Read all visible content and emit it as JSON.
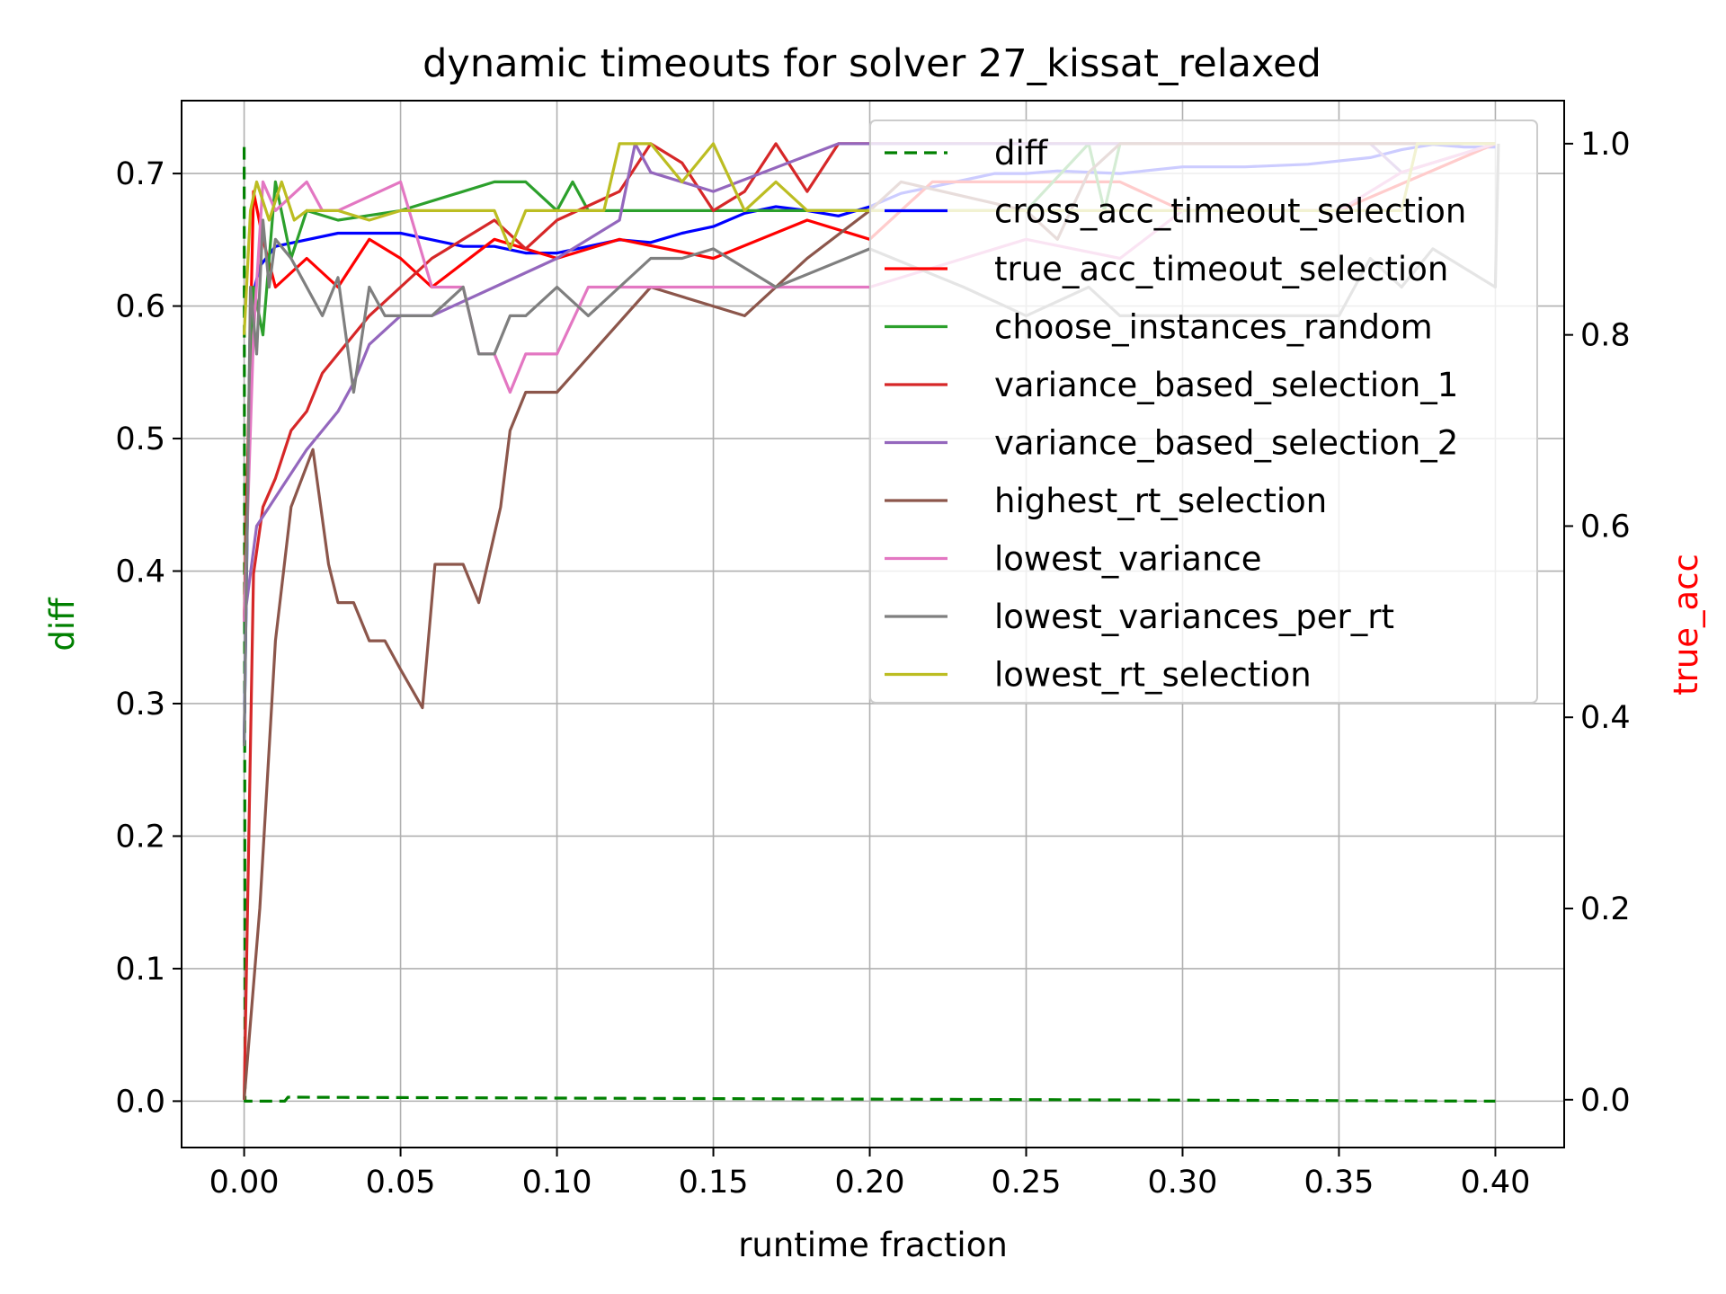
{
  "chart_data": {
    "type": "line",
    "title": "dynamic timeouts for solver 27_kissat_relaxed",
    "xlabel": "runtime fraction",
    "ylabel_left": "diff",
    "ylabel_right": "true_acc",
    "ylabel_left_color": "#008000",
    "ylabel_right_color": "#ff0000",
    "xlim": [
      -0.02,
      0.422
    ],
    "ylim_left": [
      -0.035,
      0.755
    ],
    "ylim_right": [
      -0.05,
      1.045
    ],
    "x_ticks": [
      "0.00",
      "0.05",
      "0.10",
      "0.15",
      "0.20",
      "0.25",
      "0.30",
      "0.35",
      "0.40"
    ],
    "y_left_ticks": [
      "0.0",
      "0.1",
      "0.2",
      "0.3",
      "0.4",
      "0.5",
      "0.6",
      "0.7"
    ],
    "y_right_ticks": [
      "0.0",
      "0.2",
      "0.4",
      "0.6",
      "0.8",
      "1.0"
    ],
    "grid": true,
    "legend_position": "top-right",
    "series": [
      {
        "name": "diff",
        "axis": "left",
        "color": "#008000",
        "style": "dashed",
        "x": [
          0,
          0.0003,
          0.013,
          0.014,
          0.4
        ],
        "y": [
          0.72,
          0.0,
          0.0,
          0.003,
          0.0
        ]
      },
      {
        "name": "cross_acc_timeout_selection",
        "axis": "left",
        "color": "#0000ff",
        "style": "solid",
        "x": [
          0,
          0.002,
          0.005,
          0.01,
          0.02,
          0.03,
          0.04,
          0.05,
          0.06,
          0.07,
          0.08,
          0.09,
          0.1,
          0.11,
          0.12,
          0.13,
          0.14,
          0.15,
          0.16,
          0.17,
          0.18,
          0.19,
          0.2,
          0.21,
          0.22,
          0.23,
          0.24,
          0.25,
          0.26,
          0.28,
          0.3,
          0.32,
          0.34,
          0.36,
          0.37,
          0.38,
          0.39,
          0.4
        ],
        "y": [
          0.27,
          0.6,
          0.63,
          0.645,
          0.65,
          0.655,
          0.655,
          0.655,
          0.65,
          0.645,
          0.645,
          0.64,
          0.64,
          0.645,
          0.65,
          0.648,
          0.655,
          0.66,
          0.67,
          0.675,
          0.672,
          0.668,
          0.675,
          0.685,
          0.69,
          0.695,
          0.7,
          0.7,
          0.702,
          0.7,
          0.705,
          0.705,
          0.707,
          0.712,
          0.718,
          0.722,
          0.72,
          0.72
        ]
      },
      {
        "name": "true_acc_timeout_selection",
        "axis": "right",
        "color": "#ff0000",
        "style": "solid",
        "x": [
          0,
          0.003,
          0.006,
          0.01,
          0.02,
          0.03,
          0.04,
          0.05,
          0.06,
          0.08,
          0.1,
          0.12,
          0.15,
          0.18,
          0.2,
          0.22,
          0.25,
          0.28,
          0.3,
          0.35,
          0.4
        ],
        "y": [
          0.5,
          0.95,
          0.9,
          0.85,
          0.88,
          0.85,
          0.9,
          0.88,
          0.85,
          0.9,
          0.88,
          0.9,
          0.88,
          0.92,
          0.9,
          0.96,
          0.96,
          0.96,
          0.93,
          0.93,
          1.0
        ]
      },
      {
        "name": "choose_instances_random",
        "axis": "right",
        "color": "#2ca02c",
        "style": "solid",
        "x": [
          0,
          0.003,
          0.006,
          0.01,
          0.015,
          0.02,
          0.03,
          0.05,
          0.08,
          0.09,
          0.1,
          0.105,
          0.11,
          0.15,
          0.2,
          0.25,
          0.27,
          0.275,
          0.28,
          0.29
        ],
        "y": [
          0.5,
          0.85,
          0.8,
          0.96,
          0.88,
          0.93,
          0.92,
          0.93,
          0.96,
          0.96,
          0.93,
          0.96,
          0.93,
          0.93,
          0.93,
          0.93,
          1.0,
          0.93,
          1.0,
          1.0
        ]
      },
      {
        "name": "variance_based_selection_1",
        "axis": "right",
        "color": "#d62728",
        "style": "solid",
        "x": [
          0,
          0.003,
          0.006,
          0.01,
          0.015,
          0.02,
          0.025,
          0.03,
          0.04,
          0.05,
          0.06,
          0.07,
          0.08,
          0.09,
          0.1,
          0.12,
          0.13,
          0.14,
          0.15,
          0.16,
          0.17,
          0.18,
          0.19,
          0.2,
          0.25,
          0.3,
          0.35,
          0.4
        ],
        "y": [
          0.0,
          0.55,
          0.62,
          0.65,
          0.7,
          0.72,
          0.76,
          0.78,
          0.82,
          0.85,
          0.88,
          0.9,
          0.92,
          0.89,
          0.92,
          0.95,
          1.0,
          0.98,
          0.93,
          0.95,
          1.0,
          0.95,
          1.0,
          1.0,
          1.0,
          1.0,
          1.0,
          1.0
        ]
      },
      {
        "name": "variance_based_selection_2",
        "axis": "right",
        "color": "#9467bd",
        "style": "solid",
        "x": [
          0,
          0.004,
          0.008,
          0.012,
          0.02,
          0.025,
          0.03,
          0.035,
          0.04,
          0.05,
          0.06,
          0.08,
          0.1,
          0.12,
          0.125,
          0.13,
          0.15,
          0.19,
          0.2,
          0.25,
          0.3,
          0.36,
          0.37,
          0.4
        ],
        "y": [
          0.5,
          0.6,
          0.62,
          0.64,
          0.68,
          0.7,
          0.72,
          0.75,
          0.79,
          0.82,
          0.82,
          0.85,
          0.88,
          0.92,
          1.0,
          0.97,
          0.95,
          1.0,
          1.0,
          1.0,
          1.0,
          1.0,
          0.97,
          1.0
        ]
      },
      {
        "name": "highest_rt_selection",
        "axis": "right",
        "color": "#8c564b",
        "style": "solid",
        "x": [
          0,
          0.005,
          0.01,
          0.015,
          0.022,
          0.027,
          0.03,
          0.035,
          0.04,
          0.045,
          0.05,
          0.057,
          0.061,
          0.065,
          0.07,
          0.075,
          0.082,
          0.085,
          0.09,
          0.095,
          0.1,
          0.13,
          0.16,
          0.18,
          0.2,
          0.21,
          0.25,
          0.26,
          0.27,
          0.28,
          0.3,
          0.4
        ],
        "y": [
          0.0,
          0.2,
          0.48,
          0.62,
          0.68,
          0.56,
          0.52,
          0.52,
          0.48,
          0.48,
          0.45,
          0.41,
          0.56,
          0.56,
          0.56,
          0.52,
          0.62,
          0.7,
          0.74,
          0.74,
          0.74,
          0.85,
          0.82,
          0.88,
          0.93,
          0.96,
          0.93,
          0.9,
          0.97,
          1.0,
          1.0,
          1.0
        ]
      },
      {
        "name": "lowest_variance",
        "axis": "right",
        "color": "#e377c2",
        "style": "solid",
        "x": [
          0,
          0.003,
          0.006,
          0.01,
          0.02,
          0.025,
          0.03,
          0.05,
          0.06,
          0.07,
          0.075,
          0.08,
          0.085,
          0.09,
          0.1,
          0.11,
          0.15,
          0.2,
          0.25,
          0.28,
          0.3,
          0.35,
          0.37,
          0.4
        ],
        "y": [
          0.5,
          0.8,
          0.96,
          0.93,
          0.96,
          0.93,
          0.93,
          0.96,
          0.85,
          0.85,
          0.78,
          0.78,
          0.74,
          0.78,
          0.78,
          0.85,
          0.85,
          0.85,
          0.9,
          0.88,
          0.93,
          0.93,
          0.97,
          1.0
        ]
      },
      {
        "name": "lowest_variances_per_rt",
        "axis": "right",
        "color": "#7f7f7f",
        "style": "solid",
        "x": [
          0,
          0.002,
          0.004,
          0.006,
          0.008,
          0.01,
          0.015,
          0.02,
          0.025,
          0.03,
          0.035,
          0.04,
          0.045,
          0.05,
          0.06,
          0.07,
          0.075,
          0.08,
          0.085,
          0.09,
          0.1,
          0.11,
          0.12,
          0.13,
          0.14,
          0.15,
          0.17,
          0.2,
          0.23,
          0.25,
          0.27,
          0.28,
          0.3,
          0.35,
          0.36,
          0.37,
          0.38,
          0.4,
          0.401
        ],
        "y": [
          0.37,
          0.85,
          0.78,
          0.92,
          0.85,
          0.9,
          0.88,
          0.85,
          0.82,
          0.86,
          0.74,
          0.85,
          0.82,
          0.82,
          0.82,
          0.85,
          0.78,
          0.78,
          0.82,
          0.82,
          0.85,
          0.82,
          0.85,
          0.88,
          0.88,
          0.89,
          0.85,
          0.89,
          0.85,
          0.82,
          0.85,
          0.82,
          0.82,
          0.82,
          0.88,
          0.85,
          0.89,
          0.85,
          1.0
        ]
      },
      {
        "name": "lowest_rt_selection",
        "axis": "right",
        "color": "#bcbd22",
        "style": "solid",
        "x": [
          0,
          0.002,
          0.004,
          0.008,
          0.012,
          0.016,
          0.02,
          0.03,
          0.04,
          0.05,
          0.08,
          0.085,
          0.09,
          0.1,
          0.115,
          0.12,
          0.13,
          0.14,
          0.15,
          0.16,
          0.17,
          0.18,
          0.2,
          0.25,
          0.3,
          0.35,
          0.37,
          0.375,
          0.4
        ],
        "y": [
          0.8,
          0.93,
          0.96,
          0.92,
          0.96,
          0.92,
          0.93,
          0.93,
          0.92,
          0.93,
          0.93,
          0.89,
          0.93,
          0.93,
          0.93,
          1.0,
          1.0,
          0.96,
          1.0,
          0.93,
          0.96,
          0.93,
          0.93,
          0.93,
          0.93,
          0.93,
          0.93,
          1.0,
          1.0
        ]
      }
    ]
  }
}
